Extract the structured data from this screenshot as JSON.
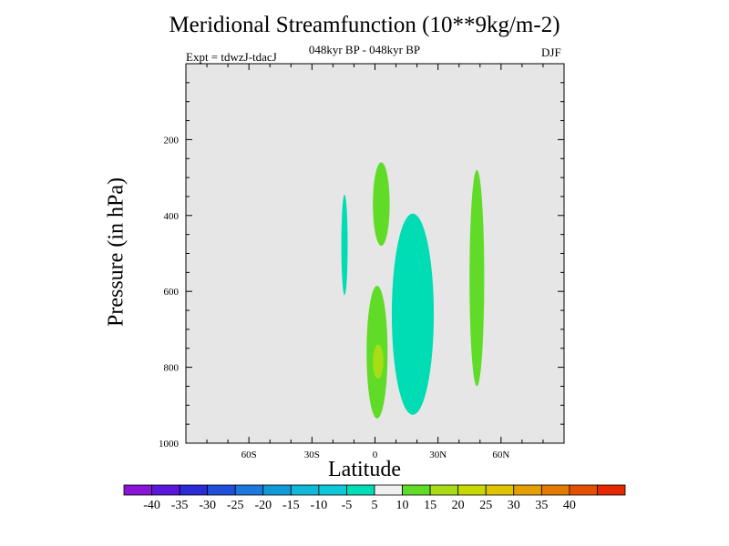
{
  "title": "Meridional Streamfunction (10**9kg/m-2)",
  "subtitle": "048kyr BP - 048kyr BP",
  "experiment": "Expt = tdwzJ-tdacJ",
  "season": "DJF",
  "chart_data": {
    "type": "heatmap",
    "title": "Meridional Streamfunction (10**9kg/m-2)",
    "xlabel": "Latitude",
    "ylabel": "Pressure (in hPa)",
    "xlim": [
      -90,
      90
    ],
    "ylim": [
      0,
      1000
    ],
    "y_inverted": true,
    "x_ticks": [
      {
        "value": -60,
        "label": "60S"
      },
      {
        "value": -30,
        "label": "30S"
      },
      {
        "value": 0,
        "label": "0"
      },
      {
        "value": 30,
        "label": "30N"
      },
      {
        "value": 60,
        "label": "60N"
      }
    ],
    "y_ticks": [
      {
        "value": 200,
        "label": "200"
      },
      {
        "value": 400,
        "label": "400"
      },
      {
        "value": 600,
        "label": "600"
      },
      {
        "value": 800,
        "label": "800"
      },
      {
        "value": 1000,
        "label": "1000"
      }
    ],
    "background_color": "#e6e6e6",
    "colorbar": {
      "labels": [
        "-40",
        "-35",
        "-30",
        "-25",
        "-20",
        "-15",
        "-10",
        "-5",
        "5",
        "10",
        "15",
        "20",
        "25",
        "30",
        "35",
        "40"
      ],
      "colors": [
        "#8a14d6",
        "#5a18dc",
        "#2a2ad6",
        "#1e50dc",
        "#1c78de",
        "#109ad8",
        "#12b8d8",
        "#0cc8d8",
        "#00dcb4",
        "#f0f0f0",
        "#60dc28",
        "#a8dc14",
        "#c8d800",
        "#e0c400",
        "#e4a000",
        "#e47a00",
        "#e45000",
        "#e42800"
      ]
    },
    "regions": [
      {
        "class": "-10 to -5",
        "color": "#00dcb4",
        "lat_range": [
          -16,
          -13
        ],
        "p_range": [
          345,
          610
        ]
      },
      {
        "class": "5 to 10",
        "color": "#60dc28",
        "lat_range": [
          -1,
          7
        ],
        "p_range": [
          260,
          480
        ]
      },
      {
        "class": "-10 to -5",
        "color": "#00dcb4",
        "lat_range": [
          8,
          28
        ],
        "p_range": [
          395,
          925
        ]
      },
      {
        "class": "5 to 10",
        "color": "#60dc28",
        "lat_range": [
          -4,
          6
        ],
        "p_range": [
          585,
          935
        ]
      },
      {
        "class": "10 to 15",
        "color": "#a8dc14",
        "lat_range": [
          -1,
          4
        ],
        "p_range": [
          740,
          830
        ]
      },
      {
        "class": "5 to 10",
        "color": "#60dc28",
        "lat_range": [
          45,
          52
        ],
        "p_range": [
          280,
          850
        ]
      }
    ]
  }
}
